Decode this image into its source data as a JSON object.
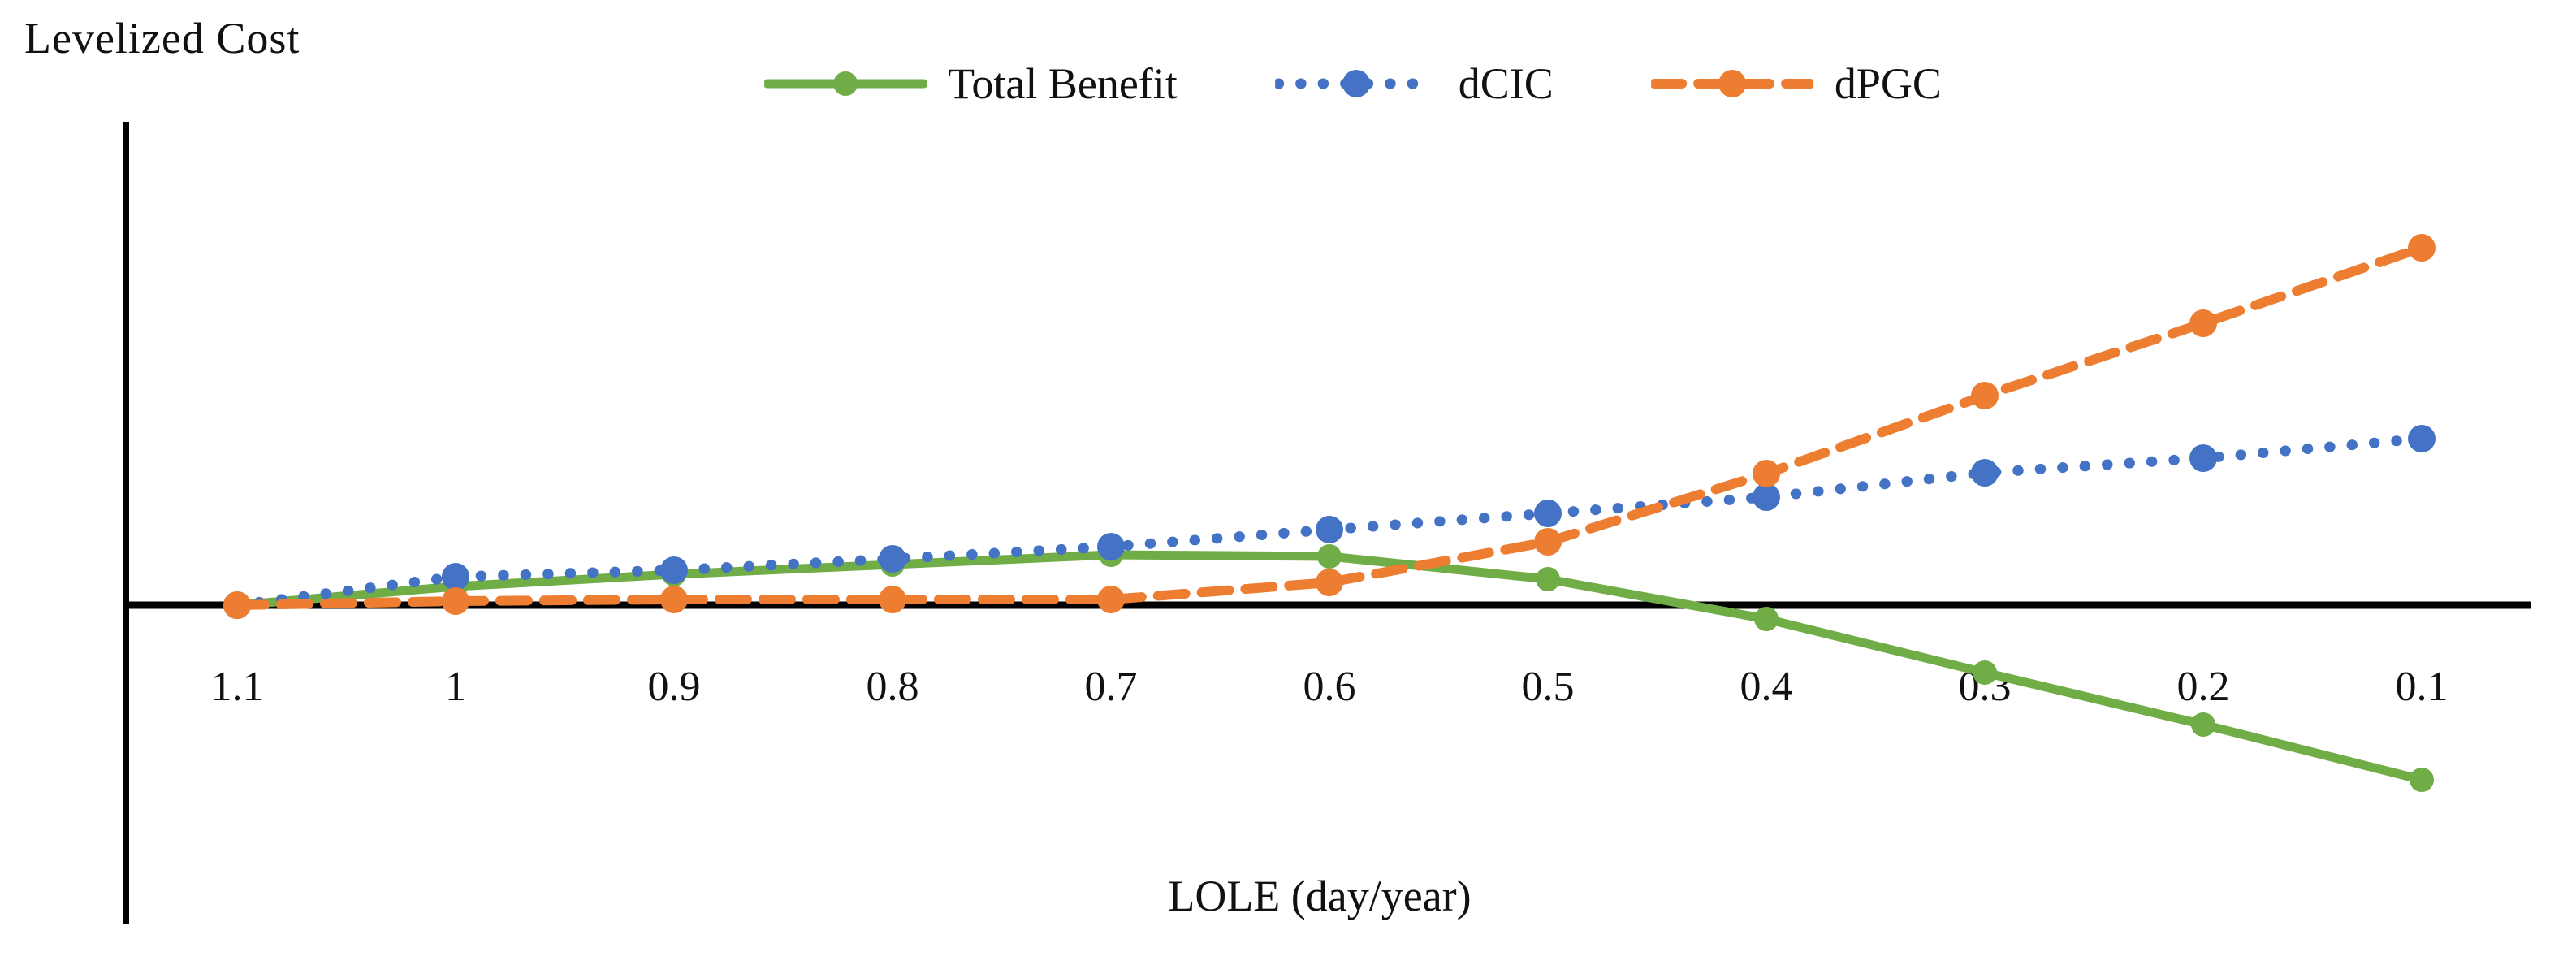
{
  "figure": {
    "y_axis_title": "Levelized Cost",
    "x_axis_title": "LOLE (day/year)"
  },
  "colors": {
    "total_benefit": "#70AD47",
    "dcic": "#4472C4",
    "dpgc": "#ED7D31",
    "axis": "#000000"
  },
  "chart_data": {
    "type": "line",
    "title": "",
    "xlabel": "LOLE (day/year)",
    "ylabel": "Levelized Cost",
    "x_axis_reversed": true,
    "grid": false,
    "legend_position": "top-center",
    "y_tick_labels_shown": false,
    "units_note": "y-axis has no tick labels; values are estimated in arbitrary units read from marker heights",
    "categories": [
      "1.1",
      "1",
      "0.9",
      "0.8",
      "0.7",
      "0.6",
      "0.5",
      "0.4",
      "0.3",
      "0.2",
      "0.1"
    ],
    "ylim": [
      -393,
      595
    ],
    "series": [
      {
        "name": "Total Benefit",
        "color": "#70AD47",
        "line_style": "solid",
        "marker": "circle",
        "values": [
          0,
          23,
          38,
          50,
          62,
          60,
          32,
          -17,
          -83,
          -147,
          -215
        ]
      },
      {
        "name": "dCIC",
        "color": "#4472C4",
        "line_style": "dotted",
        "marker": "circle",
        "values": [
          0,
          35,
          43,
          57,
          72,
          93,
          113,
          133,
          163,
          181,
          205
        ]
      },
      {
        "name": "dPGC",
        "color": "#ED7D31",
        "line_style": "dashed",
        "marker": "circle",
        "values": [
          0,
          5,
          7,
          7,
          7,
          28,
          78,
          162,
          258,
          347,
          440
        ]
      }
    ]
  }
}
